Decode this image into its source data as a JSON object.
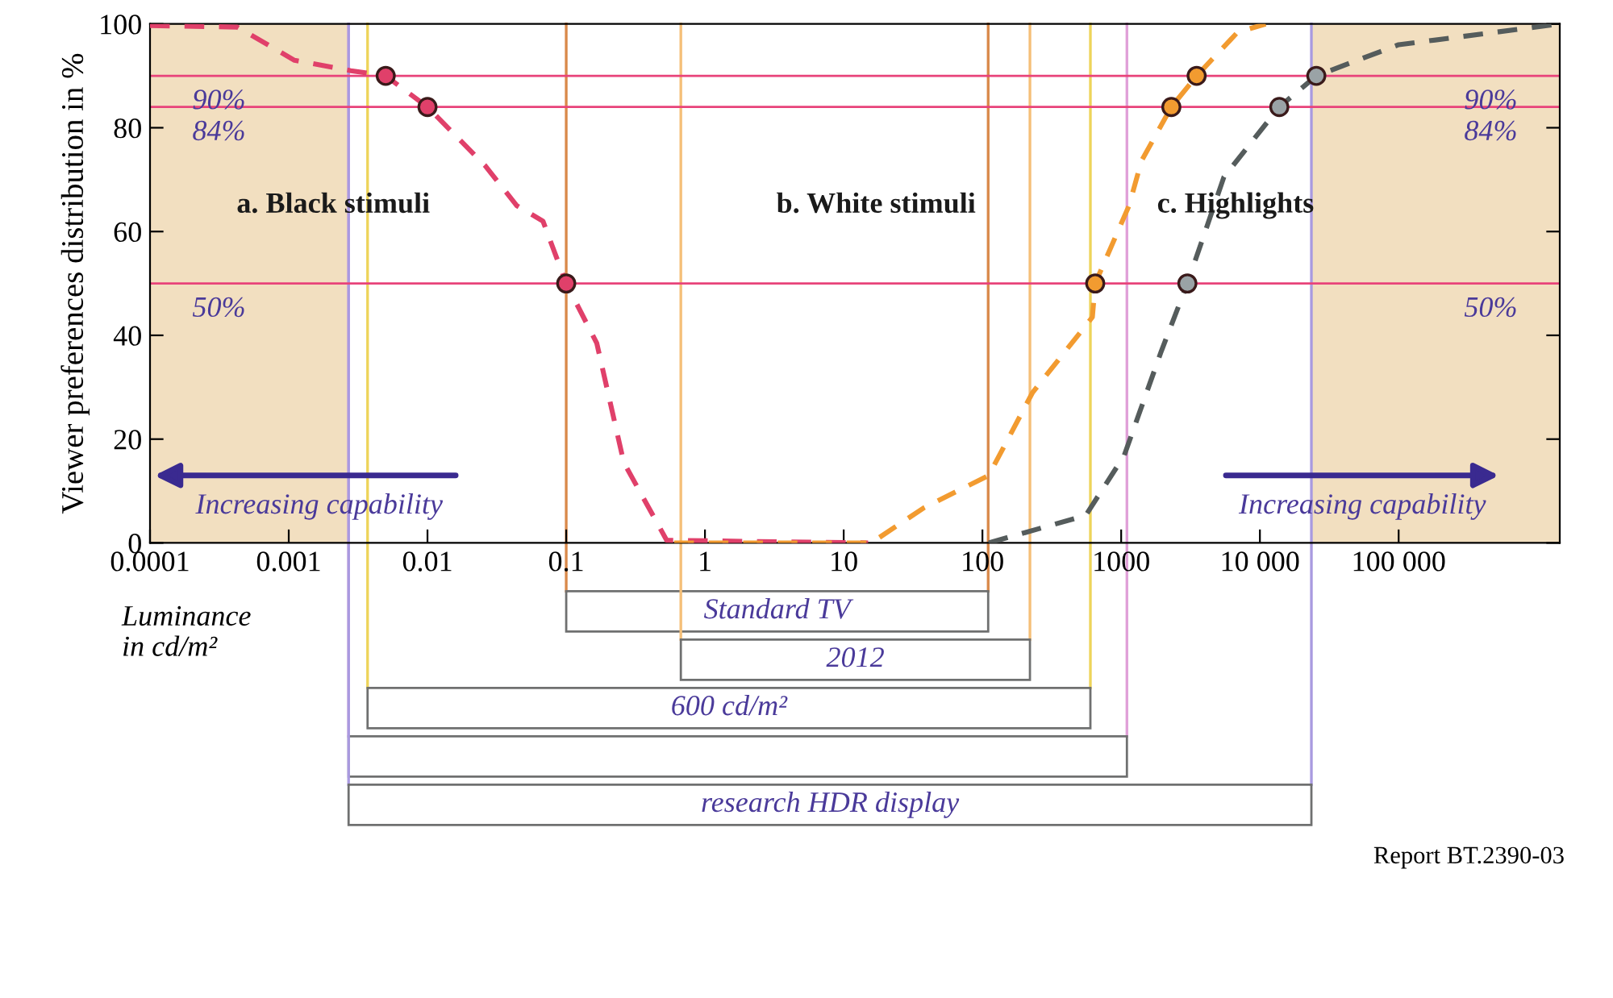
{
  "chart_data": {
    "type": "line",
    "ylabel": "Viewer preferences distribution in %",
    "xlabel": "Luminance\nin cd/m²",
    "log": "x",
    "xlim": [
      0.0001,
      1450000
    ],
    "ylim": [
      0,
      100
    ],
    "xticks": [
      0.0001,
      0.001,
      0.01,
      0.1,
      1,
      10,
      100,
      1000,
      {
        "value": 10000,
        "label": "10 000"
      },
      {
        "value": 100000,
        "label": "100 000"
      }
    ],
    "yticks": [
      0,
      20,
      40,
      60,
      80,
      100
    ],
    "grid": false,
    "line_style": "dashed",
    "marker": "none",
    "series": [
      {
        "color": "#e0406a",
        "x": [
          0.0001,
          0.000425,
          0.0011,
          0.0028,
          0.005,
          0.01,
          0.026,
          0.044,
          0.068,
          0.1,
          0.166,
          0.26,
          0.53,
          15
        ],
        "values": [
          99.7,
          99.4,
          93,
          91,
          90,
          84,
          72.7,
          65,
          62,
          50,
          38.5,
          15.5,
          0.5,
          0
        ]
      },
      {
        "color": "#f29b30",
        "x": [
          0.6,
          15.8,
          38,
          111,
          230,
          620,
          650,
          1140,
          1400,
          2300,
          3500,
          6900,
          11000
        ],
        "values": [
          0,
          0,
          6.8,
          13,
          29,
          43.5,
          50,
          65,
          73.6,
          84,
          90,
          98.4,
          100
        ]
      },
      {
        "color": "#555c5c",
        "x": [
          111,
          555,
          1050,
          1950,
          3000,
          5500,
          13800,
          25500,
          100000,
          1450000
        ],
        "values": [
          0,
          5.3,
          16.8,
          37,
          50,
          70.5,
          84,
          90,
          96,
          100
        ]
      },
      {
        "type": "scatter",
        "marker": "circle",
        "color": "#e0406a",
        "x": [
          0.005,
          0.01,
          0.1
        ],
        "values": [
          90,
          84,
          50
        ]
      },
      {
        "type": "scatter",
        "marker": "circle",
        "color": "#f29b30",
        "x": [
          650,
          2300,
          3500
        ],
        "values": [
          50,
          84,
          90
        ]
      },
      {
        "type": "scatter",
        "marker": "circle",
        "color": "#9aa3a6",
        "x": [
          3000,
          13800,
          25500
        ],
        "values": [
          50,
          84,
          90
        ]
      }
    ],
    "ref_lines": [
      {
        "axis": "y",
        "value": 90,
        "label": "90%",
        "color": "#e8437a"
      },
      {
        "axis": "y",
        "value": 84,
        "label": "84%",
        "color": "#e8437a"
      },
      {
        "axis": "y",
        "value": 50,
        "label": "50%",
        "color": "#e8437a"
      },
      {
        "axis": "x",
        "value": 0.1,
        "color": "#d9894a"
      },
      {
        "axis": "x",
        "value": 110,
        "color": "#d9894a"
      },
      {
        "axis": "x",
        "value": 0.67,
        "color": "#f5bf78"
      },
      {
        "axis": "x",
        "value": 220,
        "color": "#f5bf78"
      },
      {
        "axis": "x",
        "value": 0.0037,
        "color": "#eed45a"
      },
      {
        "axis": "x",
        "value": 600,
        "color": "#eed45a"
      },
      {
        "axis": "x",
        "value": 0.0027,
        "color": "#e0a0d8"
      },
      {
        "axis": "x",
        "value": 1100,
        "color": "#e0a0d8"
      },
      {
        "axis": "x",
        "value": 0.0027,
        "color": "#a99ae0"
      },
      {
        "axis": "x",
        "value": 23500,
        "color": "#a99ae0"
      }
    ],
    "bands": [
      {
        "axis": "x",
        "from": 0.0001,
        "to": 0.0027,
        "color": "#f2dfc0"
      },
      {
        "axis": "x",
        "from": 23500,
        "to": 1450000,
        "color": "#f2dfc0"
      }
    ],
    "annotations": [
      "a. Black stimuli",
      "b. White stimuli",
      "c. Highlights",
      "Increasing capability",
      "Increasing capability",
      "Report BT.2390-03",
      "Standard TV",
      "2012",
      "600 cd/m²",
      "research HDR display"
    ]
  }
}
